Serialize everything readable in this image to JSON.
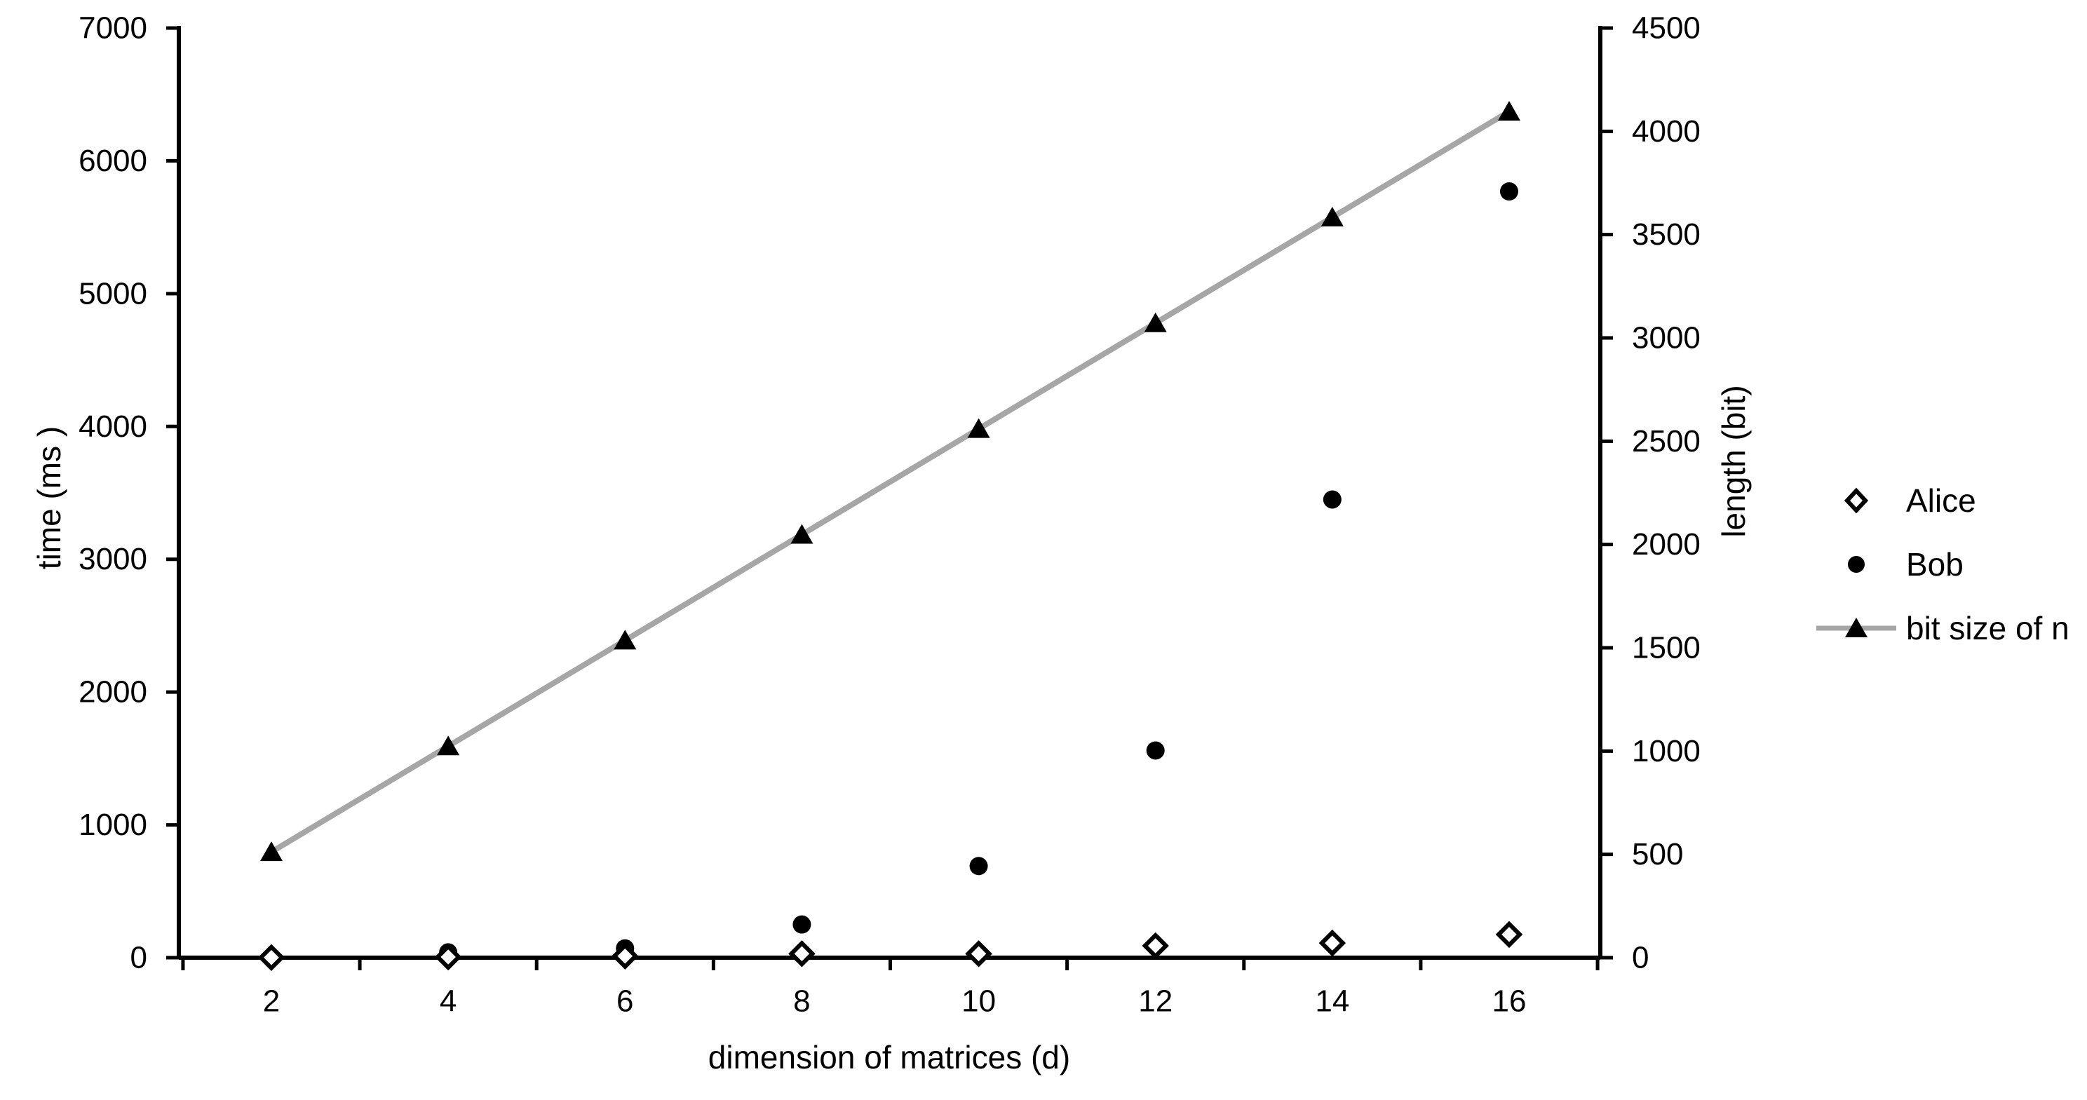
{
  "chart_data": {
    "type": "scatter",
    "title": "",
    "x": [
      2,
      4,
      6,
      8,
      10,
      12,
      14,
      16
    ],
    "series": [
      {
        "name": "Alice",
        "axis": "left",
        "marker": "open-diamond",
        "values": [
          1,
          5,
          12,
          30,
          30,
          90,
          110,
          175
        ]
      },
      {
        "name": "Bob",
        "axis": "left",
        "marker": "filled-circle",
        "values": [
          2,
          40,
          70,
          250,
          690,
          1560,
          3450,
          5770
        ]
      },
      {
        "name": "bit size of n",
        "axis": "right",
        "marker": "filled-triangle",
        "line": true,
        "values": [
          512,
          1024,
          1536,
          2048,
          2560,
          3072,
          3584,
          4096
        ]
      }
    ],
    "x_axis": {
      "label": "dimension of matrices (d)",
      "tick_labels": [
        2,
        4,
        6,
        8,
        10,
        12,
        14,
        16
      ],
      "minor_ticks": [
        1,
        3,
        5,
        7,
        9,
        11,
        13,
        15,
        17
      ]
    },
    "left_axis": {
      "label": "time (ms )",
      "min": 0,
      "max": 7000,
      "step": 1000
    },
    "right_axis": {
      "label": "length (bit)",
      "min": 0,
      "max": 4500,
      "step": 500
    },
    "legend": {
      "position": "right",
      "items": [
        "Alice",
        "Bob",
        "bit size of n"
      ]
    },
    "grid": false,
    "background": "#ffffff",
    "colors": {
      "marker": "#000000",
      "line_gray": "#a6a6a6",
      "axis": "#000000",
      "text": "#000000"
    }
  }
}
